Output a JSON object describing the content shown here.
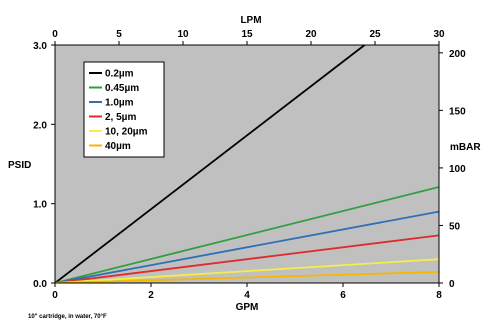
{
  "chart_data": {
    "type": "line",
    "title": "",
    "xlabel": "GPM",
    "ylabel": "PSID",
    "x2label": "LPM",
    "y2label": "mBAR",
    "xlim": [
      0,
      8
    ],
    "ylim": [
      0,
      3.0
    ],
    "x2lim": [
      0,
      30
    ],
    "y2lim": [
      0,
      206.8
    ],
    "x_ticks": [
      0,
      2,
      4,
      6,
      8
    ],
    "x_tick_labels": [
      "0",
      "2",
      "4",
      "6",
      "8"
    ],
    "y_ticks": [
      0,
      1,
      2,
      3
    ],
    "y_tick_labels": [
      "0.0",
      "1.0",
      "2.0",
      "3.0"
    ],
    "x2_ticks": [
      0,
      5,
      10,
      15,
      20,
      25,
      30
    ],
    "x2_tick_labels": [
      "0",
      "5",
      "10",
      "15",
      "20",
      "25",
      "30"
    ],
    "y2_ticks": [
      0,
      50,
      100,
      150,
      200
    ],
    "y2_tick_labels": [
      "0",
      "50",
      "100",
      "150",
      "200"
    ],
    "grid": false,
    "legend_position": "top-left",
    "plot_background": "#c0c0c0",
    "series": [
      {
        "name": "0.2µm",
        "color": "#000000",
        "x": [
          0,
          6.45
        ],
        "y": [
          0,
          3.0
        ]
      },
      {
        "name": "0.45µm",
        "color": "#2e9e3e",
        "x": [
          0,
          8
        ],
        "y": [
          0,
          1.21
        ]
      },
      {
        "name": "1.0µm",
        "color": "#2e6fb5",
        "x": [
          0,
          8
        ],
        "y": [
          0,
          0.9
        ]
      },
      {
        "name": "2, 5µm",
        "color": "#e02b2b",
        "x": [
          0,
          8
        ],
        "y": [
          0,
          0.6
        ]
      },
      {
        "name": "10, 20µm",
        "color": "#f5ee4a",
        "x": [
          0,
          8
        ],
        "y": [
          0,
          0.3
        ]
      },
      {
        "name": "40µm",
        "color": "#f5b800",
        "x": [
          0,
          8
        ],
        "y": [
          0,
          0.14
        ]
      }
    ],
    "footnote": "10\" cartridge, in water, 70°F"
  }
}
